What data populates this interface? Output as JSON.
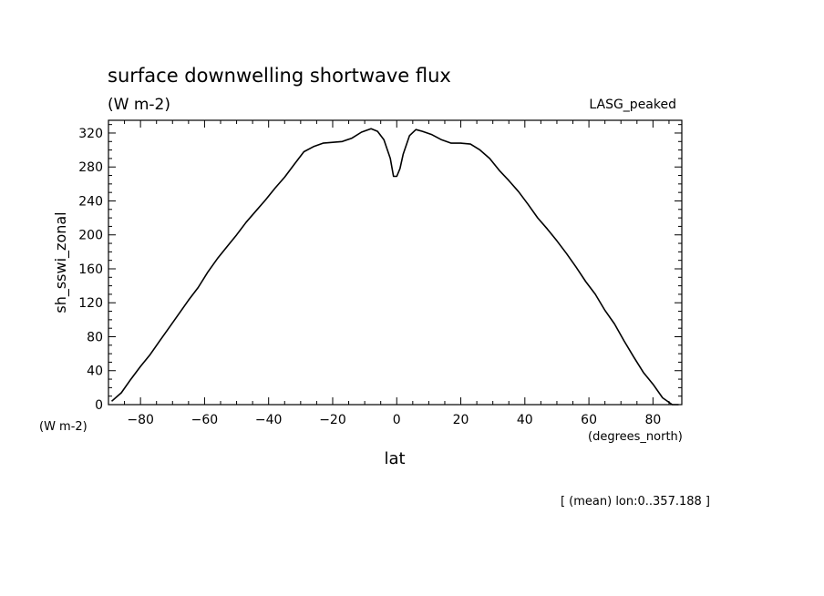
{
  "chart_data": {
    "type": "line",
    "title": "surface downwelling shortwave flux",
    "subtitle": "(W m-2)",
    "dataset_label": "LASG_peaked",
    "ylabel": "sh_sswi_zonal",
    "yunits": "(W m-2)",
    "xlabel": "lat",
    "xunits": "(degrees_north)",
    "footnote": "[ (mean) lon:0..357.188 ]",
    "xlim": [
      -90,
      89
    ],
    "ylim": [
      0,
      335
    ],
    "xticks": [
      -80,
      -60,
      -40,
      -20,
      0,
      20,
      40,
      60,
      80
    ],
    "yticks": [
      0,
      40,
      80,
      120,
      160,
      200,
      240,
      280,
      320
    ],
    "grid": false,
    "series": [
      {
        "color": "#000000",
        "x": [
          -89,
          -86,
          -83,
          -80,
          -77,
          -74,
          -71,
          -68,
          -65,
          -62,
          -59,
          -56,
          -53,
          -50,
          -47,
          -44,
          -41,
          -38,
          -35,
          -32,
          -29,
          -26,
          -23,
          -20,
          -17,
          -14,
          -11,
          -8,
          -6,
          -4,
          -2,
          -1,
          0,
          1,
          2,
          4,
          6,
          8,
          11,
          14,
          17,
          20,
          23,
          26,
          29,
          32,
          35,
          38,
          41,
          44,
          47,
          50,
          53,
          56,
          59,
          62,
          65,
          68,
          71,
          74,
          77,
          80,
          83,
          86,
          88
        ],
        "y": [
          4,
          14,
          30,
          45,
          59,
          75,
          91,
          107,
          123,
          138,
          156,
          172,
          186,
          200,
          215,
          228,
          241,
          255,
          268,
          283,
          298,
          304,
          308,
          309,
          310,
          314,
          321,
          325,
          322,
          312,
          290,
          269,
          269,
          278,
          295,
          317,
          324,
          322,
          318,
          312,
          308,
          308,
          307,
          300,
          290,
          276,
          264,
          251,
          236,
          220,
          207,
          193,
          178,
          162,
          145,
          130,
          111,
          95,
          75,
          56,
          38,
          24,
          8,
          -2,
          -4
        ]
      }
    ]
  }
}
